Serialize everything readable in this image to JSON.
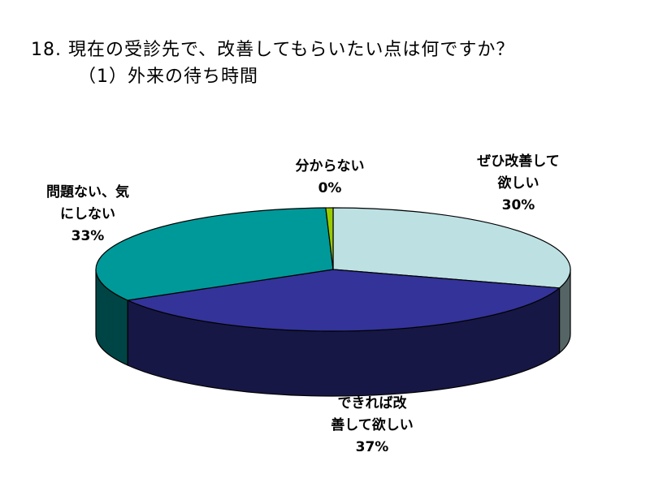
{
  "header": {
    "title": "18. 現在の受診先で、改善してもらいたい点は何ですか？",
    "subtitle": "（1）外来の待ち時間"
  },
  "chart_data": {
    "type": "pie",
    "style": "3d",
    "unit": "%",
    "slices": [
      {
        "label_lines": [
          "ぜひ改善して",
          "欲しい"
        ],
        "value": 30,
        "value_label": "30%",
        "color": "#bde0e3"
      },
      {
        "label_lines": [
          "できれば改",
          "善して欲しい"
        ],
        "value": 37,
        "value_label": "37%",
        "color": "#333399"
      },
      {
        "label_lines": [
          "問題ない、気",
          "にしない"
        ],
        "value": 33,
        "value_label": "33%",
        "color": "#009999"
      },
      {
        "label_lines": [
          "分からない"
        ],
        "value": 0.5,
        "value_label": "0%",
        "color": "#99cc00"
      }
    ]
  }
}
